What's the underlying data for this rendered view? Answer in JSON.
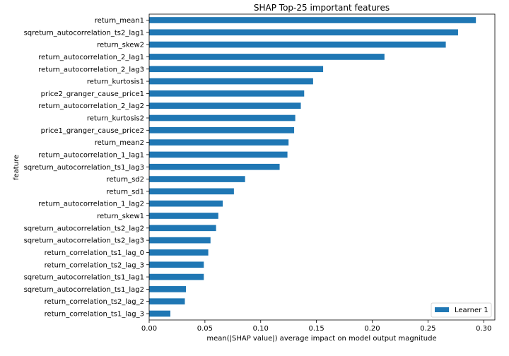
{
  "chart_data": {
    "type": "bar",
    "orientation": "horizontal",
    "title": "SHAP Top-25 important features",
    "xlabel": "mean(|SHAP value|) average impact on model output magnitude",
    "ylabel": "feature",
    "xlim": [
      0,
      0.31
    ],
    "xticks": [
      "0.00",
      "0.05",
      "0.10",
      "0.15",
      "0.20",
      "0.25",
      "0.30"
    ],
    "xtick_values": [
      0,
      0.05,
      0.1,
      0.15,
      0.2,
      0.25,
      0.3
    ],
    "grid": false,
    "legend_position": "lower-right",
    "bar_color": "#1f77b4",
    "categories": [
      "return_mean1",
      "sqreturn_autocorrelation_ts2_lag1",
      "return_skew2",
      "return_autocorrelation_2_lag1",
      "return_autocorrelation_2_lag3",
      "return_kurtosis1",
      "price2_granger_cause_price1",
      "return_autocorrelation_2_lag2",
      "return_kurtosis2",
      "price1_granger_cause_price2",
      "return_mean2",
      "return_autocorrelation_1_lag1",
      "sqreturn_autocorrelation_ts1_lag3",
      "return_sd2",
      "return_sd1",
      "return_autocorrelation_1_lag2",
      "return_skew1",
      "sqreturn_autocorrelation_ts2_lag2",
      "sqreturn_autocorrelation_ts2_lag3",
      "return_correlation_ts1_lag_0",
      "return_correlation_ts2_lag_3",
      "sqreturn_autocorrelation_ts1_lag1",
      "sqreturn_autocorrelation_ts1_lag2",
      "return_correlation_ts2_lag_2",
      "return_correlation_ts1_lag_3"
    ],
    "series": [
      {
        "name": "Learner 1",
        "values": [
          0.293,
          0.277,
          0.266,
          0.211,
          0.156,
          0.147,
          0.139,
          0.136,
          0.131,
          0.13,
          0.125,
          0.124,
          0.117,
          0.086,
          0.076,
          0.066,
          0.062,
          0.06,
          0.055,
          0.053,
          0.049,
          0.049,
          0.033,
          0.032,
          0.019
        ]
      }
    ]
  }
}
